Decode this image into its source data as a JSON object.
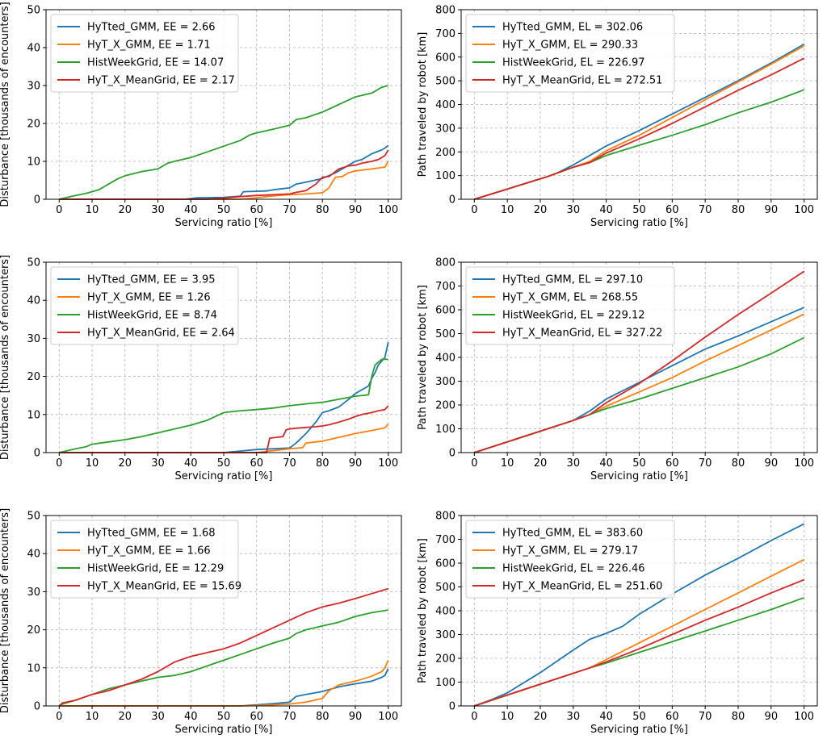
{
  "chart_data": [
    {
      "type": "line",
      "row": 1,
      "column": "left",
      "xlabel": "Servicing ratio [%]",
      "ylabel": "Disturbance [thousands of encounters]",
      "xlim": [
        -4,
        104
      ],
      "ylim": [
        0,
        50
      ],
      "xticks": [
        0,
        10,
        20,
        30,
        40,
        50,
        60,
        70,
        80,
        90,
        100
      ],
      "yticks": [
        0,
        10,
        20,
        30,
        40,
        50
      ],
      "grid": true,
      "legend_position": "top-left",
      "series": [
        {
          "name": "HyTted_GMM, EE = 2.66",
          "color": "#1f77b4",
          "x": [
            0,
            38,
            42,
            50,
            55,
            56,
            63,
            65,
            68,
            70,
            72,
            75,
            80,
            84,
            88,
            90,
            92,
            95,
            98,
            99,
            100
          ],
          "y": [
            0,
            0,
            0.4,
            0.5,
            0.8,
            2.0,
            2.2,
            2.5,
            2.8,
            3.0,
            4.0,
            4.5,
            5.5,
            7.0,
            9.0,
            10.0,
            10.5,
            12.0,
            13.0,
            13.5,
            14.2
          ]
        },
        {
          "name": "HyT_X_GMM, EE = 1.71",
          "color": "#ff7f0e",
          "x": [
            0,
            55,
            60,
            65,
            70,
            75,
            78,
            80,
            82,
            83,
            84,
            86,
            88,
            90,
            95,
            99,
            100
          ],
          "y": [
            0,
            0,
            0.4,
            0.9,
            1.2,
            1.4,
            1.6,
            1.7,
            3.0,
            4.5,
            5.8,
            6.0,
            7.0,
            7.5,
            8.0,
            8.5,
            10.0
          ]
        },
        {
          "name": "HistWeekGrid, EE = 14.07",
          "color": "#2ca02c",
          "x": [
            0,
            5,
            8,
            10,
            12,
            15,
            18,
            20,
            25,
            30,
            33,
            35,
            40,
            45,
            50,
            55,
            58,
            60,
            65,
            70,
            72,
            75,
            80,
            85,
            90,
            95,
            98,
            100
          ],
          "y": [
            0,
            1,
            1.5,
            2,
            2.5,
            4,
            5.5,
            6.2,
            7.3,
            8.0,
            9.5,
            10,
            11,
            12.5,
            14,
            15.5,
            17,
            17.5,
            18.5,
            19.5,
            21,
            21.5,
            23,
            25,
            27,
            28,
            29.5,
            30
          ]
        },
        {
          "name": "HyT_X_MeanGrid, EE = 2.17",
          "color": "#d62728",
          "x": [
            0,
            45,
            50,
            55,
            60,
            65,
            70,
            72,
            75,
            78,
            80,
            82,
            85,
            88,
            90,
            92,
            95,
            97,
            98,
            99,
            100
          ],
          "y": [
            0,
            0,
            0.3,
            0.7,
            1.0,
            1.2,
            1.4,
            1.8,
            2.3,
            4.0,
            5.8,
            6.0,
            8.0,
            8.8,
            9.0,
            9.5,
            10.0,
            10.5,
            11.0,
            11.5,
            13.0
          ]
        }
      ]
    },
    {
      "type": "line",
      "row": 1,
      "column": "right",
      "xlabel": "Servicing ratio [%]",
      "ylabel": "Path traveled by robot [km]",
      "xlim": [
        -4,
        104
      ],
      "ylim": [
        0,
        800
      ],
      "xticks": [
        0,
        10,
        20,
        30,
        40,
        50,
        60,
        70,
        80,
        90,
        100
      ],
      "yticks": [
        0,
        100,
        200,
        300,
        400,
        500,
        600,
        700,
        800
      ],
      "grid": true,
      "legend_position": "top-left",
      "series": [
        {
          "name": "HyTted_GMM, EL = 302.06",
          "color": "#1f77b4",
          "x": [
            0,
            22,
            25,
            30,
            35,
            40,
            50,
            60,
            70,
            80,
            90,
            100
          ],
          "y": [
            0,
            95,
            110,
            145,
            185,
            225,
            290,
            360,
            430,
            500,
            575,
            655
          ]
        },
        {
          "name": "HyT_X_GMM, EL = 290.33",
          "color": "#ff7f0e",
          "x": [
            0,
            22,
            30,
            35,
            40,
            50,
            60,
            70,
            80,
            90,
            100
          ],
          "y": [
            0,
            95,
            135,
            160,
            205,
            270,
            345,
            420,
            495,
            570,
            647
          ]
        },
        {
          "name": "HistWeekGrid, EL = 226.97",
          "color": "#2ca02c",
          "x": [
            0,
            22,
            30,
            35,
            40,
            50,
            60,
            70,
            80,
            90,
            100
          ],
          "y": [
            0,
            95,
            135,
            155,
            185,
            228,
            270,
            315,
            365,
            410,
            462
          ]
        },
        {
          "name": "HyT_X_MeanGrid, EL = 272.51",
          "color": "#d62728",
          "x": [
            0,
            22,
            30,
            35,
            40,
            50,
            60,
            70,
            80,
            90,
            100
          ],
          "y": [
            0,
            95,
            135,
            155,
            195,
            255,
            320,
            390,
            460,
            525,
            595
          ]
        }
      ]
    },
    {
      "type": "line",
      "row": 2,
      "column": "left",
      "xlabel": "Servicing ratio [%]",
      "ylabel": "Disturbance [thousands of encounters]",
      "xlim": [
        -4,
        104
      ],
      "ylim": [
        0,
        50
      ],
      "xticks": [
        0,
        10,
        20,
        30,
        40,
        50,
        60,
        70,
        80,
        90,
        100
      ],
      "yticks": [
        0,
        10,
        20,
        30,
        40,
        50
      ],
      "grid": true,
      "legend_position": "top-left",
      "series": [
        {
          "name": "HyTted_GMM, EE = 3.95",
          "color": "#1f77b4",
          "x": [
            0,
            50,
            55,
            60,
            65,
            70,
            72,
            75,
            78,
            80,
            82,
            85,
            88,
            90,
            92,
            94,
            95,
            96,
            97,
            98,
            99,
            100
          ],
          "y": [
            0,
            0,
            0.4,
            0.8,
            1.0,
            1.2,
            2.5,
            5.0,
            8.0,
            10.5,
            11.0,
            12.0,
            14.0,
            15.5,
            16.5,
            17.5,
            19.5,
            21.0,
            23.0,
            24.0,
            25.0,
            29.0
          ]
        },
        {
          "name": "HyT_X_GMM, EE = 1.26",
          "color": "#ff7f0e",
          "x": [
            0,
            60,
            65,
            70,
            74,
            75,
            80,
            85,
            90,
            95,
            99,
            100
          ],
          "y": [
            0,
            0,
            0.5,
            1.0,
            1.3,
            2.5,
            3.0,
            4.0,
            5.0,
            5.8,
            6.5,
            7.5
          ]
        },
        {
          "name": "HistWeekGrid, EE = 8.74",
          "color": "#2ca02c",
          "x": [
            0,
            5,
            8,
            10,
            15,
            20,
            25,
            30,
            35,
            40,
            45,
            50,
            55,
            60,
            65,
            70,
            75,
            80,
            85,
            90,
            94,
            95,
            96,
            98,
            100
          ],
          "y": [
            0,
            1,
            1.5,
            2.2,
            2.8,
            3.4,
            4.2,
            5.2,
            6.2,
            7.2,
            8.5,
            10.5,
            11.0,
            11.3,
            11.7,
            12.3,
            12.8,
            13.2,
            14.0,
            14.8,
            15.2,
            20.0,
            23.0,
            24.5,
            24.5
          ]
        },
        {
          "name": "HyT_X_MeanGrid, EE = 2.64",
          "color": "#d62728",
          "x": [
            0,
            63,
            64,
            66,
            68,
            69,
            70,
            72,
            75,
            78,
            80,
            82,
            85,
            88,
            90,
            92,
            95,
            97,
            99,
            100
          ],
          "y": [
            0,
            0,
            3.8,
            4.0,
            4.2,
            6.0,
            6.2,
            6.4,
            6.6,
            6.8,
            7.0,
            7.3,
            8.0,
            8.8,
            9.5,
            10.0,
            10.5,
            11.0,
            11.3,
            12.3
          ]
        }
      ]
    },
    {
      "type": "line",
      "row": 2,
      "column": "right",
      "xlabel": "Servicing ratio [%]",
      "ylabel": "Path traveled by robot [km]",
      "xlim": [
        -4,
        104
      ],
      "ylim": [
        0,
        800
      ],
      "xticks": [
        0,
        10,
        20,
        30,
        40,
        50,
        60,
        70,
        80,
        90,
        100
      ],
      "yticks": [
        0,
        100,
        200,
        300,
        400,
        500,
        600,
        700,
        800
      ],
      "grid": true,
      "legend_position": "top-left",
      "series": [
        {
          "name": "HyTted_GMM, EL = 297.10",
          "color": "#1f77b4",
          "x": [
            0,
            30,
            35,
            40,
            50,
            60,
            70,
            80,
            90,
            100
          ],
          "y": [
            0,
            135,
            175,
            225,
            295,
            365,
            435,
            490,
            550,
            610
          ]
        },
        {
          "name": "HyT_X_GMM, EL = 268.55",
          "color": "#ff7f0e",
          "x": [
            0,
            30,
            35,
            40,
            50,
            60,
            70,
            80,
            90,
            100
          ],
          "y": [
            0,
            135,
            160,
            195,
            255,
            315,
            385,
            450,
            515,
            582
          ]
        },
        {
          "name": "HistWeekGrid, EL = 229.12",
          "color": "#2ca02c",
          "x": [
            0,
            30,
            35,
            40,
            50,
            60,
            70,
            80,
            90,
            100
          ],
          "y": [
            0,
            135,
            160,
            185,
            225,
            270,
            315,
            360,
            415,
            483
          ]
        },
        {
          "name": "HyT_X_MeanGrid, EL = 327.22",
          "color": "#d62728",
          "x": [
            0,
            30,
            35,
            40,
            50,
            60,
            70,
            80,
            90,
            100
          ],
          "y": [
            0,
            135,
            160,
            210,
            290,
            385,
            485,
            580,
            670,
            762
          ]
        }
      ]
    },
    {
      "type": "line",
      "row": 3,
      "column": "left",
      "xlabel": "Servicing ratio [%]",
      "ylabel": "Disturbance [thousands of encounters]",
      "xlim": [
        -4,
        104
      ],
      "ylim": [
        0,
        50
      ],
      "xticks": [
        0,
        10,
        20,
        30,
        40,
        50,
        60,
        70,
        80,
        90,
        100
      ],
      "yticks": [
        0,
        10,
        20,
        30,
        40,
        50
      ],
      "grid": true,
      "legend_position": "top-left",
      "series": [
        {
          "name": "HyTted_GMM, EE = 1.68",
          "color": "#1f77b4",
          "x": [
            0,
            55,
            60,
            65,
            70,
            72,
            75,
            80,
            85,
            88,
            90,
            95,
            98,
            99,
            100
          ],
          "y": [
            0,
            0,
            0.3,
            0.6,
            1.0,
            2.5,
            3.0,
            3.8,
            5.0,
            5.5,
            5.8,
            6.5,
            7.5,
            8.0,
            9.8
          ]
        },
        {
          "name": "HyT_X_GMM, EE = 1.66",
          "color": "#ff7f0e",
          "x": [
            0,
            55,
            60,
            65,
            70,
            75,
            80,
            82,
            85,
            90,
            95,
            98,
            99,
            100
          ],
          "y": [
            0,
            0,
            0.1,
            0.3,
            0.5,
            1.0,
            2.0,
            4.0,
            5.5,
            6.5,
            7.8,
            9.0,
            10.0,
            12.0
          ]
        },
        {
          "name": "HistWeekGrid, EE = 12.29",
          "color": "#2ca02c",
          "x": [
            0,
            1,
            5,
            10,
            15,
            20,
            25,
            30,
            35,
            40,
            45,
            50,
            55,
            60,
            65,
            70,
            72,
            75,
            80,
            85,
            90,
            95,
            100
          ],
          "y": [
            0,
            0.5,
            1.5,
            3.0,
            4.5,
            5.5,
            6.5,
            7.5,
            8.0,
            9.0,
            10.5,
            12.0,
            13.5,
            15.0,
            16.5,
            17.8,
            19.0,
            20.0,
            21.0,
            22.0,
            23.5,
            24.5,
            25.2
          ]
        },
        {
          "name": "HyT_X_MeanGrid, EE = 15.69",
          "color": "#d62728",
          "x": [
            0,
            1,
            5,
            10,
            15,
            20,
            25,
            30,
            35,
            40,
            45,
            50,
            55,
            60,
            65,
            70,
            75,
            80,
            85,
            90,
            95,
            100
          ],
          "y": [
            0,
            0.8,
            1.5,
            3.0,
            4.0,
            5.5,
            7.0,
            9.0,
            11.5,
            13.0,
            14.0,
            15.0,
            16.5,
            18.5,
            20.5,
            22.5,
            24.5,
            26.0,
            27.0,
            28.2,
            29.5,
            30.8
          ]
        }
      ]
    },
    {
      "type": "line",
      "row": 3,
      "column": "right",
      "xlabel": "Servicing ratio [%]",
      "ylabel": "Path traveled by robot [km]",
      "xlim": [
        -4,
        104
      ],
      "ylim": [
        0,
        800
      ],
      "xticks": [
        0,
        10,
        20,
        30,
        40,
        50,
        60,
        70,
        80,
        90,
        100
      ],
      "yticks": [
        0,
        100,
        200,
        300,
        400,
        500,
        600,
        700,
        800
      ],
      "grid": true,
      "legend_position": "top-left",
      "series": [
        {
          "name": "HyTted_GMM, EL = 383.60",
          "color": "#1f77b4",
          "x": [
            0,
            5,
            10,
            20,
            30,
            35,
            40,
            45,
            50,
            60,
            70,
            80,
            90,
            100
          ],
          "y": [
            0,
            25,
            55,
            140,
            235,
            280,
            305,
            335,
            385,
            470,
            550,
            620,
            695,
            765
          ]
        },
        {
          "name": "HyT_X_GMM, EL = 279.17",
          "color": "#ff7f0e",
          "x": [
            0,
            35,
            40,
            50,
            60,
            70,
            80,
            90,
            100
          ],
          "y": [
            0,
            160,
            195,
            265,
            335,
            405,
            475,
            545,
            615
          ]
        },
        {
          "name": "HistWeekGrid, EL = 226.46",
          "color": "#2ca02c",
          "x": [
            0,
            35,
            40,
            50,
            60,
            70,
            80,
            90,
            100
          ],
          "y": [
            0,
            160,
            180,
            225,
            270,
            315,
            360,
            405,
            455
          ]
        },
        {
          "name": "HyT_X_MeanGrid, EL = 251.60",
          "color": "#d62728",
          "x": [
            0,
            35,
            40,
            50,
            60,
            70,
            80,
            90,
            100
          ],
          "y": [
            0,
            160,
            185,
            240,
            300,
            360,
            415,
            475,
            530
          ]
        }
      ]
    }
  ]
}
